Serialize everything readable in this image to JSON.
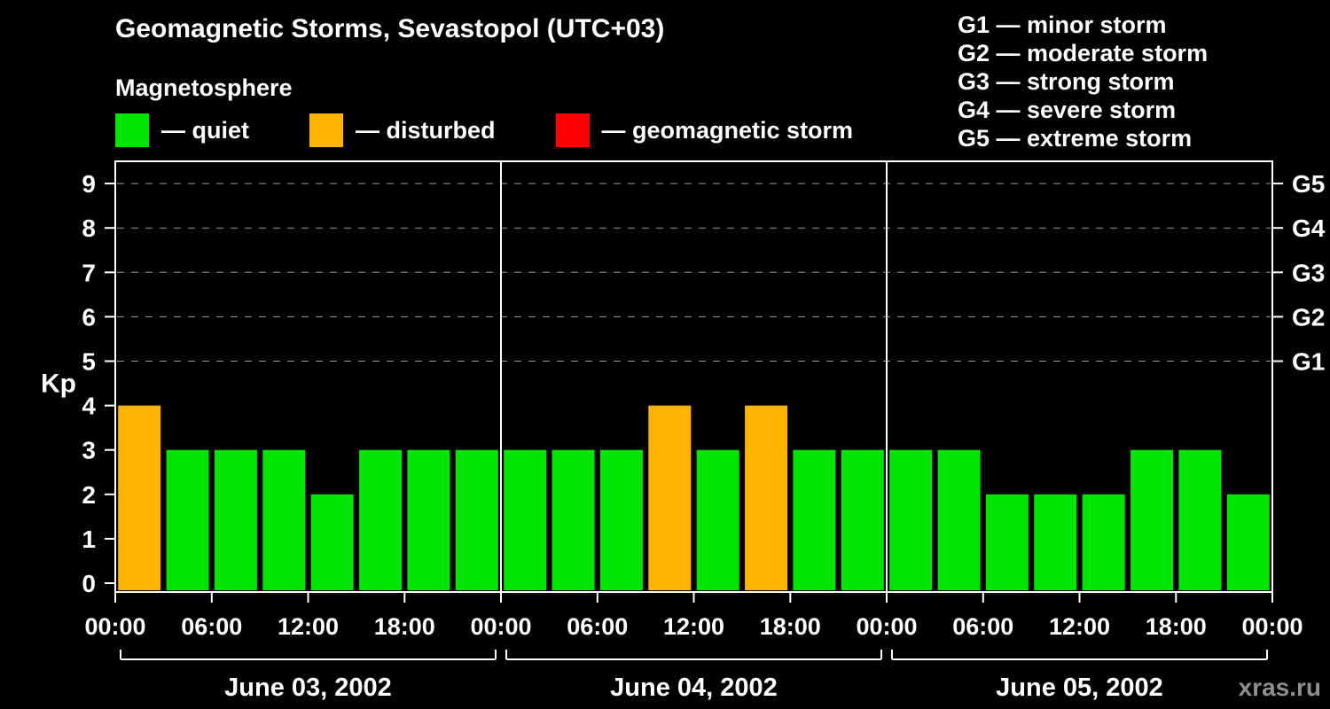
{
  "header": {
    "title": "Geomagnetic Storms, Sevastopol (UTC+03)",
    "subtitle": "Magnetosphere"
  },
  "legend": {
    "items": [
      {
        "name": "quiet",
        "label": "— quiet",
        "color": "#00e400"
      },
      {
        "name": "disturbed",
        "label": "— disturbed",
        "color": "#ffb400"
      },
      {
        "name": "storm",
        "label": "— geomagnetic storm",
        "color": "#ff0000"
      }
    ]
  },
  "storm_scale": {
    "items": [
      "G1 — minor storm",
      "G2 — moderate storm",
      "G3 — strong storm",
      "G4 — severe storm",
      "G5 — extreme storm"
    ]
  },
  "watermark": "xras.ru",
  "chart_data": {
    "type": "bar",
    "title": "Geomagnetic Storms, Sevastopol (UTC+03)",
    "ylabel": "Kp",
    "ylim": [
      0,
      9
    ],
    "y_ticks": [
      0,
      1,
      2,
      3,
      4,
      5,
      6,
      7,
      8,
      9
    ],
    "grid_levels": [
      5,
      6,
      7,
      8,
      9
    ],
    "grid": "dashed horizontal lines at G storm levels",
    "legend_position": "top",
    "interval_hours": 3,
    "right_axis": [
      {
        "label": "G1",
        "kp": 5
      },
      {
        "label": "G2",
        "kp": 6
      },
      {
        "label": "G3",
        "kp": 7
      },
      {
        "label": "G4",
        "kp": 8
      },
      {
        "label": "G5",
        "kp": 9
      }
    ],
    "x_tick_labels": [
      "00:00",
      "06:00",
      "12:00",
      "18:00",
      "00:00",
      "06:00",
      "12:00",
      "18:00",
      "00:00",
      "06:00",
      "12:00",
      "18:00",
      "00:00"
    ],
    "days": [
      {
        "date": "June 03, 2002",
        "values": [
          4,
          3,
          3,
          3,
          2,
          3,
          3,
          3
        ]
      },
      {
        "date": "June 04, 2002",
        "values": [
          3,
          3,
          3,
          4,
          3,
          4,
          3,
          3
        ]
      },
      {
        "date": "June 05, 2002",
        "values": [
          3,
          3,
          2,
          2,
          2,
          3,
          3,
          2
        ]
      }
    ],
    "colors": {
      "quiet": "#00e400",
      "disturbed": "#ffb400",
      "storm": "#ff0000"
    },
    "color_thresholds": {
      "disturbed_kp": 4,
      "storm_kp": 5
    }
  }
}
